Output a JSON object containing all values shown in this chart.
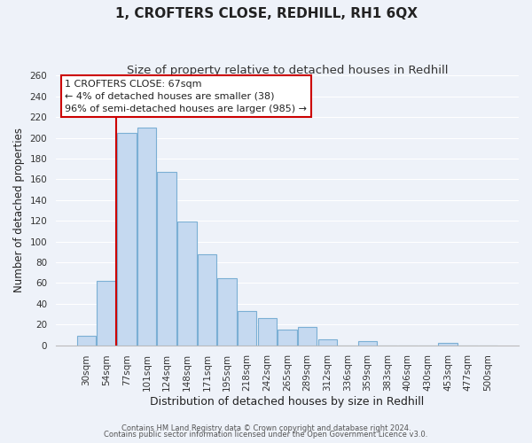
{
  "title": "1, CROFTERS CLOSE, REDHILL, RH1 6QX",
  "subtitle": "Size of property relative to detached houses in Redhill",
  "xlabel": "Distribution of detached houses by size in Redhill",
  "ylabel": "Number of detached properties",
  "bar_labels": [
    "30sqm",
    "54sqm",
    "77sqm",
    "101sqm",
    "124sqm",
    "148sqm",
    "171sqm",
    "195sqm",
    "218sqm",
    "242sqm",
    "265sqm",
    "289sqm",
    "312sqm",
    "336sqm",
    "359sqm",
    "383sqm",
    "406sqm",
    "430sqm",
    "453sqm",
    "477sqm",
    "500sqm"
  ],
  "bar_heights": [
    9,
    62,
    205,
    210,
    167,
    119,
    88,
    65,
    33,
    26,
    15,
    18,
    6,
    0,
    4,
    0,
    0,
    0,
    2,
    0,
    0
  ],
  "bar_color": "#c5d9f0",
  "bar_edge_color": "#7bafd4",
  "vline_color": "#cc0000",
  "annotation_text": "1 CROFTERS CLOSE: 67sqm\n← 4% of detached houses are smaller (38)\n96% of semi-detached houses are larger (985) →",
  "annotation_box_color": "#ffffff",
  "annotation_box_edge": "#cc0000",
  "footer_line1": "Contains HM Land Registry data © Crown copyright and database right 2024.",
  "footer_line2": "Contains public sector information licensed under the Open Government Licence v3.0.",
  "ylim": [
    0,
    260
  ],
  "background_color": "#eef2f9",
  "grid_color": "#ffffff",
  "title_fontsize": 11,
  "subtitle_fontsize": 9.5,
  "tick_fontsize": 7.5,
  "ylabel_fontsize": 8.5,
  "xlabel_fontsize": 9,
  "footer_fontsize": 6,
  "ann_fontsize": 8
}
